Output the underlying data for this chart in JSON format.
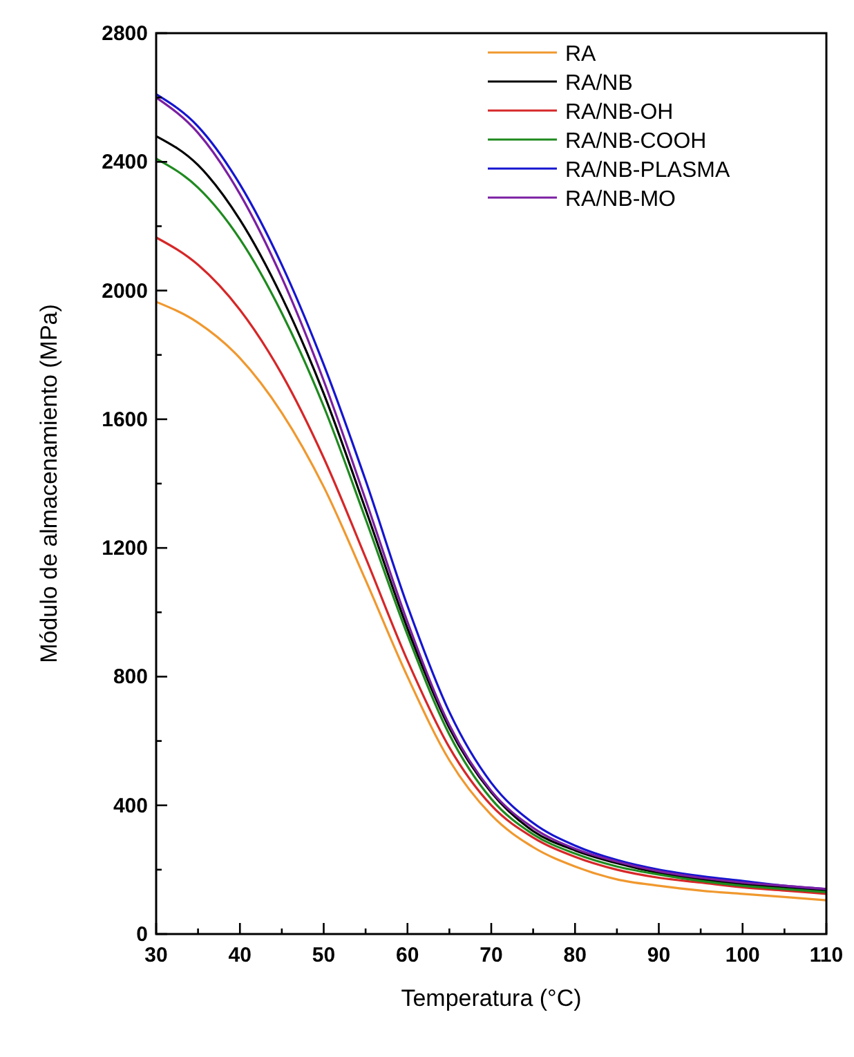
{
  "chart_data": {
    "type": "line",
    "xlabel": "Temperatura (°C)",
    "ylabel": "Módulo de almacenamiento (MPa)",
    "x": [
      30,
      35,
      40,
      45,
      50,
      55,
      60,
      65,
      70,
      75,
      80,
      85,
      90,
      95,
      100,
      105,
      110
    ],
    "xlim": [
      30,
      110
    ],
    "xticks": [
      30,
      40,
      50,
      60,
      70,
      80,
      90,
      100,
      110
    ],
    "ylim": [
      0,
      2800
    ],
    "yticks": [
      0,
      400,
      800,
      1200,
      1600,
      2000,
      2400,
      2800
    ],
    "grid": false,
    "legend": "top right",
    "marker": "none",
    "line_style": "solid",
    "series": [
      {
        "name": "RA",
        "color": "#f0982e",
        "values": [
          1965,
          1900,
          1790,
          1620,
          1390,
          1100,
          800,
          540,
          370,
          270,
          210,
          170,
          150,
          135,
          125,
          115,
          105
        ]
      },
      {
        "name": "RA/NB",
        "color": "#000000",
        "values": [
          2480,
          2390,
          2220,
          1980,
          1680,
          1320,
          950,
          640,
          440,
          320,
          260,
          220,
          190,
          170,
          155,
          145,
          135
        ]
      },
      {
        "name": "RA/NB-OH",
        "color": "#d62728",
        "values": [
          2165,
          2080,
          1940,
          1740,
          1480,
          1170,
          850,
          580,
          400,
          300,
          240,
          200,
          175,
          160,
          145,
          135,
          125
        ]
      },
      {
        "name": "RA/NB-COOH",
        "color": "#1e8a1e",
        "values": [
          2410,
          2320,
          2160,
          1930,
          1640,
          1290,
          930,
          620,
          420,
          310,
          250,
          210,
          185,
          165,
          150,
          140,
          130
        ]
      },
      {
        "name": "RA/NB-PLASMA",
        "color": "#1515d0",
        "values": [
          2610,
          2510,
          2330,
          2080,
          1770,
          1410,
          1020,
          690,
          470,
          345,
          275,
          230,
          200,
          180,
          165,
          150,
          140
        ]
      },
      {
        "name": "RA/NB-MO",
        "color": "#7b1fa2",
        "values": [
          2600,
          2490,
          2300,
          2040,
          1720,
          1350,
          970,
          650,
          445,
          330,
          265,
          225,
          195,
          175,
          160,
          150,
          140
        ]
      }
    ]
  }
}
